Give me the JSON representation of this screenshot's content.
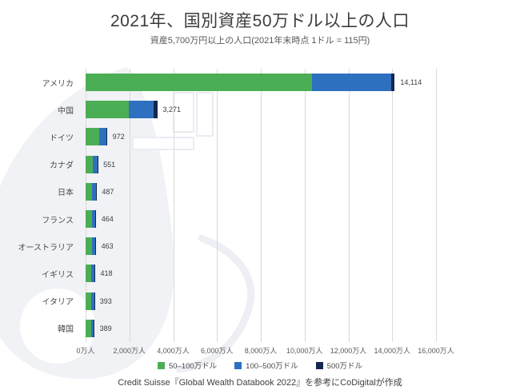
{
  "page": {
    "title": "2021年、国別資産50万ドル以上の人口",
    "subtitle": "資産5,700万円以上の人口(2021年末時点 1ドル = 115円)",
    "footer": "Credit Suisse『Global Wealth Databook 2022』を参考にCoDigitalが作成"
  },
  "colors": {
    "segment_green": "#4cae54",
    "segment_blue": "#2e70c0",
    "segment_navy": "#14274e",
    "gridline": "#dadada",
    "title_text": "#3c3c3c",
    "watermark": "#f0f2f6"
  },
  "chart_data": {
    "type": "bar",
    "orientation": "horizontal",
    "title": "2021年、国別資産50万ドル以上の人口",
    "subtitle": "資産5,700万円以上の人口(2021年末時点 1ドル = 115円)",
    "categories": [
      "アメリカ",
      "中国",
      "ドイツ",
      "カナダ",
      "日本",
      "フランス",
      "オーストラリア",
      "イギリス",
      "イタリア",
      "韓国"
    ],
    "totals": [
      14114,
      3271,
      972,
      551,
      487,
      464,
      463,
      418,
      393,
      389
    ],
    "total_labels": [
      "14,114",
      "3,271",
      "972",
      "551",
      "487",
      "464",
      "463",
      "418",
      "393",
      "389"
    ],
    "series": [
      {
        "name": "50–100万ドル",
        "color": "#4cae54",
        "values": [
          10330,
          1980,
          610,
          345,
          305,
          290,
          288,
          262,
          248,
          243
        ]
      },
      {
        "name": "100–500万ドル",
        "color": "#2e70c0",
        "values": [
          3615,
          1140,
          340,
          192,
          170,
          162,
          161,
          145,
          136,
          136
        ]
      },
      {
        "name": "500万ドル",
        "color": "#14274e",
        "values": [
          169,
          151,
          22,
          14,
          12,
          12,
          14,
          11,
          9,
          10
        ]
      }
    ],
    "x_ticks": [
      "0万人",
      "2,000万人",
      "4,000万人",
      "6,000万人",
      "8,000万人",
      "10,000万人",
      "12,000万人",
      "14,000万人",
      "16,000万人"
    ],
    "xlabel": "",
    "ylabel": "",
    "xlim": [
      0,
      16000
    ],
    "grid": true,
    "legend_position": "bottom"
  }
}
